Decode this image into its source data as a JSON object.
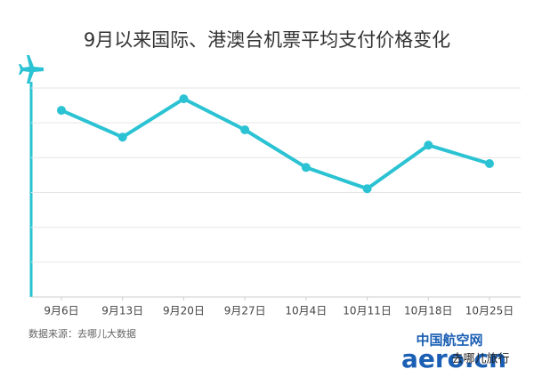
{
  "chart_data": {
    "type": "line",
    "title": "9月以来国际、港澳台机票平均支付价格变化",
    "source": "数据来源：去哪儿大数据",
    "categories": [
      "9月6日",
      "9月13日",
      "9月20日",
      "9月27日",
      "10月4日",
      "10月11日",
      "10月18日",
      "10月25日"
    ],
    "series": [
      {
        "color": "#2bc3d3",
        "values": [
          5.36,
          4.59,
          5.69,
          4.8,
          3.72,
          3.11,
          4.36,
          3.83
        ]
      }
    ],
    "ylim": [
      0,
      6
    ],
    "yticks": [
      1,
      2,
      3,
      4,
      5,
      6
    ],
    "grid": true,
    "watermark": [
      "中国航空网",
      "aero.cn",
      "去哪儿旅行"
    ]
  }
}
